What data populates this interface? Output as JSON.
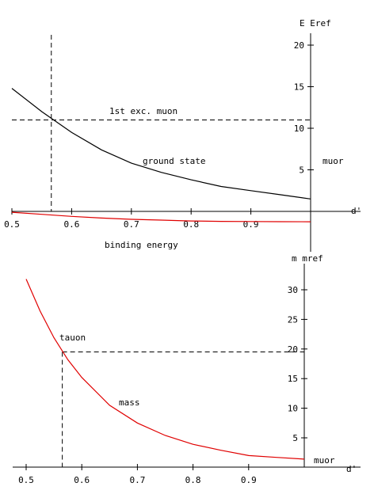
{
  "chart_data": [
    {
      "type": "line",
      "xlabel": "d'",
      "ylabel": "E Eref",
      "xlim": [
        0.5,
        1.0
      ],
      "ylim": [
        -2.5,
        21
      ],
      "x_ticks": [
        "0.5",
        "0.6",
        "0.7",
        "0.8",
        "0.9"
      ],
      "y_ticks": [
        "5",
        "10",
        "15",
        "20"
      ],
      "series": [
        {
          "name": "ground state",
          "color": "#000000",
          "x": [
            0.5,
            0.55,
            0.6,
            0.65,
            0.7,
            0.75,
            0.8,
            0.85,
            0.9,
            0.95,
            1.0
          ],
          "y": [
            14.8,
            12.0,
            9.5,
            7.4,
            5.8,
            4.7,
            3.8,
            3.0,
            2.5,
            2.0,
            1.5
          ]
        },
        {
          "name": "binding energy",
          "color": "#e00000",
          "x": [
            0.5,
            0.55,
            0.6,
            0.65,
            0.7,
            0.75,
            0.8,
            0.85,
            0.9,
            0.95,
            1.0
          ],
          "y": [
            -0.1,
            -0.35,
            -0.6,
            -0.8,
            -0.95,
            -1.05,
            -1.15,
            -1.2,
            -1.22,
            -1.24,
            -1.25
          ]
        }
      ],
      "reference_lines": {
        "horizontal": {
          "y": 11.0,
          "label": "1st exc. muon"
        },
        "vertical": {
          "x": 0.566
        }
      },
      "annotations": [
        {
          "text": "1st exc. muon"
        },
        {
          "text": "ground  state"
        },
        {
          "text": "binding  energy"
        },
        {
          "text": "muor"
        }
      ]
    },
    {
      "type": "line",
      "xlabel": "d'",
      "ylabel": "m mref",
      "xlim": [
        0.47,
        1.0
      ],
      "ylim": [
        0,
        33
      ],
      "x_ticks": [
        "0.5",
        "0.6",
        "0.7",
        "0.8",
        "0.9"
      ],
      "y_ticks": [
        "5",
        "10",
        "15",
        "20",
        "25",
        "30"
      ],
      "series": [
        {
          "name": "mass",
          "color": "#e00000",
          "x": [
            0.5,
            0.525,
            0.55,
            0.575,
            0.6,
            0.65,
            0.7,
            0.75,
            0.8,
            0.85,
            0.9,
            0.95,
            1.0
          ],
          "y": [
            31.8,
            26.4,
            21.9,
            18.2,
            15.2,
            10.5,
            7.5,
            5.4,
            3.9,
            2.9,
            2.0,
            1.7,
            1.4
          ]
        }
      ],
      "reference_lines": {
        "horizontal": {
          "y": 19.5,
          "label": "tauon"
        },
        "vertical": {
          "x": 0.565
        }
      },
      "annotations": [
        {
          "text": "tauon"
        },
        {
          "text": "mass"
        },
        {
          "text": "muor"
        }
      ]
    }
  ]
}
